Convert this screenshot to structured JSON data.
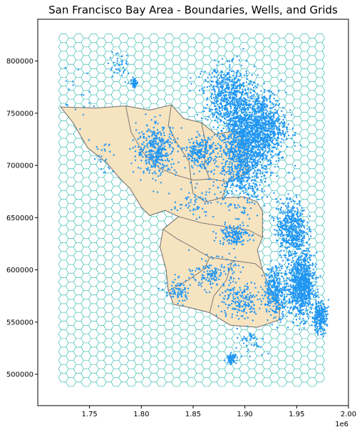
{
  "chart_data": {
    "type": "scatter",
    "title": "San Francisco Bay Area - Boundaries, Wells, and Grids",
    "xlabel": "",
    "ylabel": "",
    "x_offset_label": "1e6",
    "xlim": [
      1.7,
      2.0
    ],
    "ylim": [
      470000,
      840000
    ],
    "x_ticks": [
      1.75,
      1.8,
      1.85,
      1.9,
      1.95,
      2.0
    ],
    "x_tick_labels": [
      "1.75",
      "1.80",
      "1.85",
      "1.90",
      "1.95",
      "2.00"
    ],
    "y_ticks": [
      500000,
      550000,
      600000,
      650000,
      700000,
      750000,
      800000
    ],
    "y_tick_labels": [
      "500000",
      "550000",
      "600000",
      "650000",
      "700000",
      "750000",
      "800000"
    ],
    "grid": false,
    "colors": {
      "wells": "#2196f3",
      "hex_grid": "#3dbcb4",
      "boundary_fill": "#f6e3c0",
      "boundary_edge": "#6e6e6e"
    },
    "layers": {
      "hex_grid": {
        "x_range": [
          1.72,
          1.98
        ],
        "y_range": [
          488000,
          826000
        ],
        "hex_size": 0.00485
      },
      "boundaries": {
        "outline": [
          [
            1.722,
            756000
          ],
          [
            1.756,
            755000
          ],
          [
            1.785,
            757000
          ],
          [
            1.808,
            753000
          ],
          [
            1.829,
            758000
          ],
          [
            1.841,
            745000
          ],
          [
            1.858,
            741000
          ],
          [
            1.872,
            730000
          ],
          [
            1.892,
            733000
          ],
          [
            1.902,
            718000
          ],
          [
            1.903,
            694000
          ],
          [
            1.884,
            684000
          ],
          [
            1.878,
            669000
          ],
          [
            1.899,
            670000
          ],
          [
            1.912,
            665000
          ],
          [
            1.917,
            656000
          ],
          [
            1.917,
            631000
          ],
          [
            1.912,
            619000
          ],
          [
            1.917,
            600000
          ],
          [
            1.924,
            583000
          ],
          [
            1.934,
            567000
          ],
          [
            1.933,
            552000
          ],
          [
            1.912,
            545000
          ],
          [
            1.886,
            547000
          ],
          [
            1.866,
            559000
          ],
          [
            1.846,
            564000
          ],
          [
            1.831,
            567000
          ],
          [
            1.826,
            580000
          ],
          [
            1.824,
            600000
          ],
          [
            1.818,
            622000
          ],
          [
            1.821,
            639000
          ],
          [
            1.836,
            651000
          ],
          [
            1.823,
            657000
          ],
          [
            1.808,
            652000
          ],
          [
            1.8,
            660000
          ],
          [
            1.789,
            678000
          ],
          [
            1.778,
            689000
          ],
          [
            1.767,
            702000
          ],
          [
            1.748,
            717000
          ],
          [
            1.734,
            741000
          ]
        ],
        "dividers": [
          [
            [
              1.785,
              757000
            ],
            [
              1.79,
              732000
            ],
            [
              1.802,
              712000
            ],
            [
              1.818,
              697000
            ],
            [
              1.836,
              690000
            ],
            [
              1.85,
              686000
            ],
            [
              1.868,
              687000
            ],
            [
              1.884,
              684000
            ]
          ],
          [
            [
              1.829,
              758000
            ],
            [
              1.826,
              738000
            ],
            [
              1.834,
              722000
            ],
            [
              1.846,
              704000
            ],
            [
              1.848,
              686000
            ]
          ],
          [
            [
              1.858,
              741000
            ],
            [
              1.862,
              722000
            ],
            [
              1.861,
              700000
            ],
            [
              1.866,
              687000
            ]
          ],
          [
            [
              1.848,
              686000
            ],
            [
              1.85,
              673000
            ],
            [
              1.862,
              665000
            ],
            [
              1.878,
              669000
            ]
          ],
          [
            [
              1.836,
              651000
            ],
            [
              1.858,
              645000
            ],
            [
              1.884,
              641000
            ],
            [
              1.904,
              638000
            ],
            [
              1.917,
              631000
            ]
          ],
          [
            [
              1.821,
              639000
            ],
            [
              1.834,
              630000
            ],
            [
              1.847,
              623000
            ],
            [
              1.866,
              612000
            ]
          ],
          [
            [
              1.866,
              612000
            ],
            [
              1.888,
              609000
            ],
            [
              1.91,
              606000
            ],
            [
              1.917,
              600000
            ]
          ],
          [
            [
              1.826,
              580000
            ],
            [
              1.845,
              590000
            ],
            [
              1.861,
              601000
            ],
            [
              1.866,
              612000
            ]
          ],
          [
            [
              1.866,
              559000
            ],
            [
              1.87,
              575000
            ],
            [
              1.882,
              590000
            ],
            [
              1.888,
              609000
            ]
          ]
        ]
      },
      "wells": {
        "clusters": [
          {
            "cx": 1.898,
            "cy": 718000,
            "sx": 0.021,
            "sy": 44000,
            "n": 1500
          },
          {
            "cx": 1.918,
            "cy": 736000,
            "sx": 0.018,
            "sy": 28000,
            "n": 700
          },
          {
            "cx": 1.945,
            "cy": 640000,
            "sx": 0.012,
            "sy": 22000,
            "n": 500
          },
          {
            "cx": 1.955,
            "cy": 585000,
            "sx": 0.01,
            "sy": 25000,
            "n": 900
          },
          {
            "cx": 1.93,
            "cy": 580000,
            "sx": 0.01,
            "sy": 20000,
            "n": 350
          },
          {
            "cx": 1.972,
            "cy": 555000,
            "sx": 0.006,
            "sy": 12000,
            "n": 250
          },
          {
            "cx": 1.815,
            "cy": 715000,
            "sx": 0.016,
            "sy": 20000,
            "n": 380
          },
          {
            "cx": 1.856,
            "cy": 712000,
            "sx": 0.011,
            "sy": 12000,
            "n": 220
          },
          {
            "cx": 1.884,
            "cy": 768000,
            "sx": 0.02,
            "sy": 22000,
            "n": 500
          },
          {
            "cx": 1.889,
            "cy": 634000,
            "sx": 0.012,
            "sy": 8000,
            "n": 160
          },
          {
            "cx": 1.896,
            "cy": 570000,
            "sx": 0.017,
            "sy": 16000,
            "n": 180
          },
          {
            "cx": 1.87,
            "cy": 596000,
            "sx": 0.017,
            "sy": 12000,
            "n": 150
          },
          {
            "cx": 1.835,
            "cy": 580000,
            "sx": 0.01,
            "sy": 10000,
            "n": 80
          },
          {
            "cx": 1.887,
            "cy": 515000,
            "sx": 0.004,
            "sy": 4000,
            "n": 70
          },
          {
            "cx": 1.906,
            "cy": 532000,
            "sx": 0.012,
            "sy": 9000,
            "n": 40
          },
          {
            "cx": 1.793,
            "cy": 779000,
            "sx": 0.002,
            "sy": 3500,
            "n": 70
          },
          {
            "cx": 1.778,
            "cy": 795000,
            "sx": 0.01,
            "sy": 12000,
            "n": 40
          },
          {
            "cx": 1.762,
            "cy": 705000,
            "sx": 0.01,
            "sy": 14000,
            "n": 25
          },
          {
            "cx": 1.74,
            "cy": 770000,
            "sx": 0.012,
            "sy": 30000,
            "n": 18
          },
          {
            "cx": 1.85,
            "cy": 665000,
            "sx": 0.016,
            "sy": 12000,
            "n": 60
          }
        ]
      }
    }
  }
}
